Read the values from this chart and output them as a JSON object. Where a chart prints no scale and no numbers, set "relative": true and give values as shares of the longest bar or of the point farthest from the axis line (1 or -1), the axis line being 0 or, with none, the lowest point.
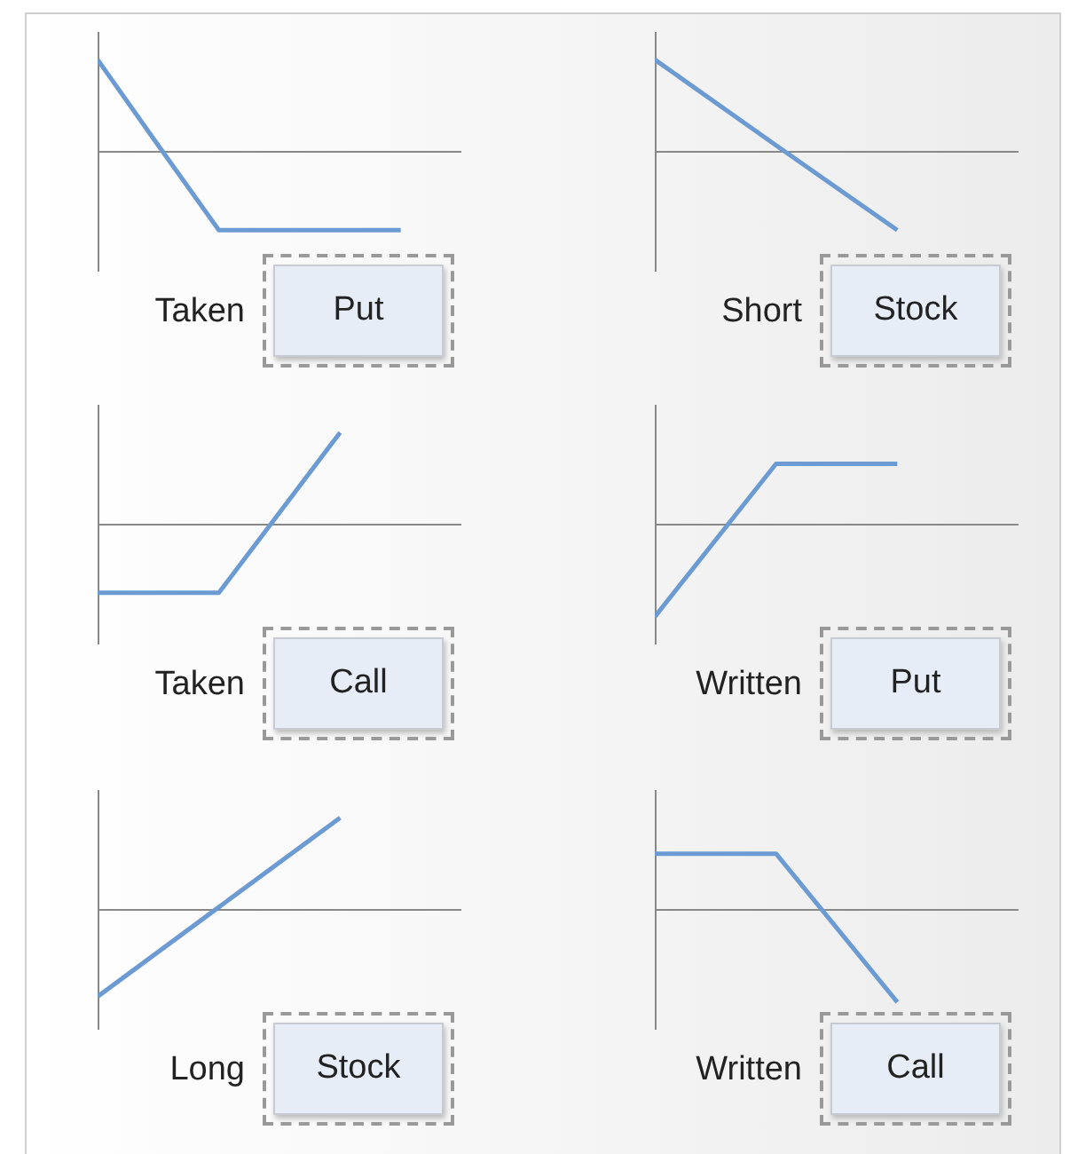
{
  "chart_data": [
    {
      "type": "line",
      "relative": true,
      "categories": [
        null,
        null,
        null,
        null,
        null,
        null,
        null
      ],
      "series": [
        {
          "color": "#6b9bd2",
          "values": [
            1,
            0.07,
            -0.85,
            -0.85,
            -0.85,
            -0.85,
            null
          ]
        }
      ],
      "annotations": [
        "Taken",
        "Put"
      ]
    },
    {
      "type": "line",
      "relative": true,
      "categories": [
        null,
        null,
        null,
        null
      ],
      "series": [
        {
          "color": "#6b9bd2",
          "values": [
            1,
            0.07,
            -0.85,
            null
          ]
        }
      ],
      "annotations": [
        "Short",
        "Stock"
      ]
    },
    {
      "type": "line",
      "relative": true,
      "categories": [
        null,
        null,
        null,
        null
      ],
      "series": [
        {
          "color": "#6b9bd2",
          "values": [
            -0.74,
            -0.74,
            1,
            null
          ]
        }
      ],
      "annotations": [
        "Taken",
        "Call"
      ]
    },
    {
      "type": "line",
      "relative": true,
      "categories": [
        null,
        null,
        null,
        null
      ],
      "series": [
        {
          "color": "#6b9bd2",
          "values": [
            -1,
            0.66,
            0.66,
            null
          ]
        }
      ],
      "annotations": [
        "Written",
        "Put"
      ]
    },
    {
      "type": "line",
      "relative": true,
      "categories": [
        null,
        null,
        null,
        null
      ],
      "series": [
        {
          "color": "#6b9bd2",
          "values": [
            -0.94,
            0.03,
            1,
            null
          ]
        }
      ],
      "annotations": [
        "Long",
        "Stock"
      ]
    },
    {
      "type": "line",
      "relative": true,
      "categories": [
        null,
        null,
        null,
        null
      ],
      "series": [
        {
          "color": "#6b9bd2",
          "values": [
            0.61,
            0.61,
            -1,
            null
          ]
        }
      ],
      "annotations": [
        "Written",
        "Call"
      ]
    }
  ]
}
